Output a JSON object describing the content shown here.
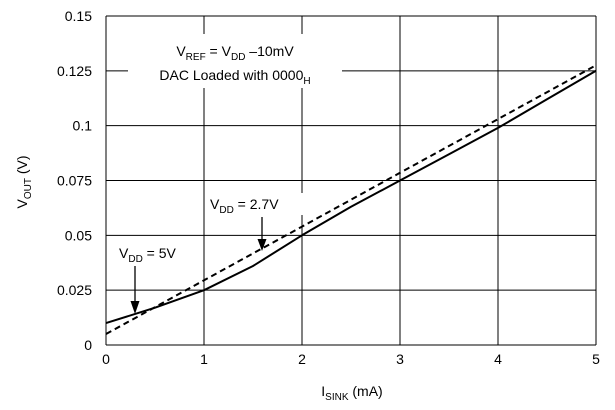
{
  "chart_data": {
    "type": "line",
    "xlabel": {
      "main": "I",
      "sub": "SINK",
      "rest": " (mA)"
    },
    "ylabel": {
      "main": "V",
      "sub": "OUT",
      "rest": " (V)"
    },
    "xlim": [
      0,
      5
    ],
    "ylim": [
      0,
      0.15
    ],
    "x_ticks": [
      "0",
      "1",
      "2",
      "3",
      "4",
      "5"
    ],
    "y_ticks": [
      "0",
      "0.025",
      "0.05",
      "0.075",
      "0.1",
      "0.125",
      "0.15"
    ],
    "grid": true,
    "series": [
      {
        "style": "solid",
        "x": [
          0,
          0.5,
          1.0,
          1.5,
          2.0,
          2.5,
          3.0,
          3.5,
          4.0,
          4.5,
          5.0
        ],
        "y": [
          0.01,
          0.017,
          0.025,
          0.036,
          0.05,
          0.063,
          0.075,
          0.087,
          0.099,
          0.112,
          0.125
        ]
      },
      {
        "style": "dashed",
        "x": [
          0,
          1,
          2,
          3,
          4,
          5
        ],
        "y": [
          0.005,
          0.0295,
          0.054,
          0.0785,
          0.103,
          0.1275
        ]
      }
    ],
    "annotations": {
      "box_line1": {
        "a": "V",
        "a_sub": "REF",
        "b": " = V",
        "b_sub": "DD",
        "c": " –10mV"
      },
      "box_line2": {
        "a": "DAC Loaded with 0000",
        "a_sub": "H"
      },
      "vdd27": {
        "a": "V",
        "a_sub": "DD",
        "b": " = 2.7V"
      },
      "vdd5": {
        "a": "V",
        "a_sub": "DD",
        "b": " = 5V"
      }
    }
  }
}
